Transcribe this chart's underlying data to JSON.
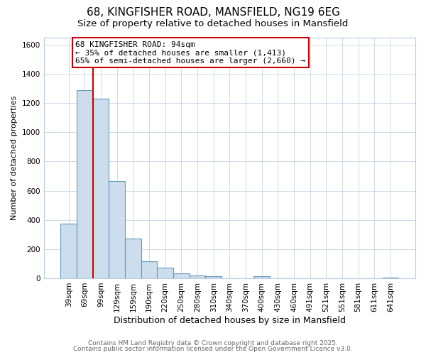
{
  "title": "68, KINGFISHER ROAD, MANSFIELD, NG19 6EG",
  "subtitle": "Size of property relative to detached houses in Mansfield",
  "xlabel": "Distribution of detached houses by size in Mansfield",
  "ylabel": "Number of detached properties",
  "bar_labels": [
    "39sqm",
    "69sqm",
    "99sqm",
    "129sqm",
    "159sqm",
    "190sqm",
    "220sqm",
    "250sqm",
    "280sqm",
    "310sqm",
    "340sqm",
    "370sqm",
    "400sqm",
    "430sqm",
    "460sqm",
    "491sqm",
    "521sqm",
    "551sqm",
    "581sqm",
    "611sqm",
    "641sqm"
  ],
  "bar_values": [
    375,
    1290,
    1230,
    665,
    270,
    115,
    75,
    35,
    20,
    15,
    0,
    0,
    12,
    0,
    0,
    0,
    0,
    0,
    0,
    0,
    5
  ],
  "bar_color": "#ccdded",
  "bar_edge_color": "#6699bb",
  "vline_color": "#cc0000",
  "annotation_title": "68 KINGFISHER ROAD: 94sqm",
  "annotation_line1": "← 35% of detached houses are smaller (1,413)",
  "annotation_line2": "65% of semi-detached houses are larger (2,660) →",
  "annotation_box_color": "#ffffff",
  "annotation_box_edge": "#cc0000",
  "ylim": [
    0,
    1650
  ],
  "footer1": "Contains HM Land Registry data © Crown copyright and database right 2025.",
  "footer2": "Contains public sector information licensed under the Open Government Licence v3.0.",
  "background_color": "#ffffff",
  "plot_background": "#ffffff",
  "grid_color": "#bbccdd",
  "title_fontsize": 11,
  "subtitle_fontsize": 9.5,
  "xlabel_fontsize": 9,
  "ylabel_fontsize": 8,
  "tick_fontsize": 7.5,
  "footer_fontsize": 6.5,
  "annot_fontsize": 8
}
